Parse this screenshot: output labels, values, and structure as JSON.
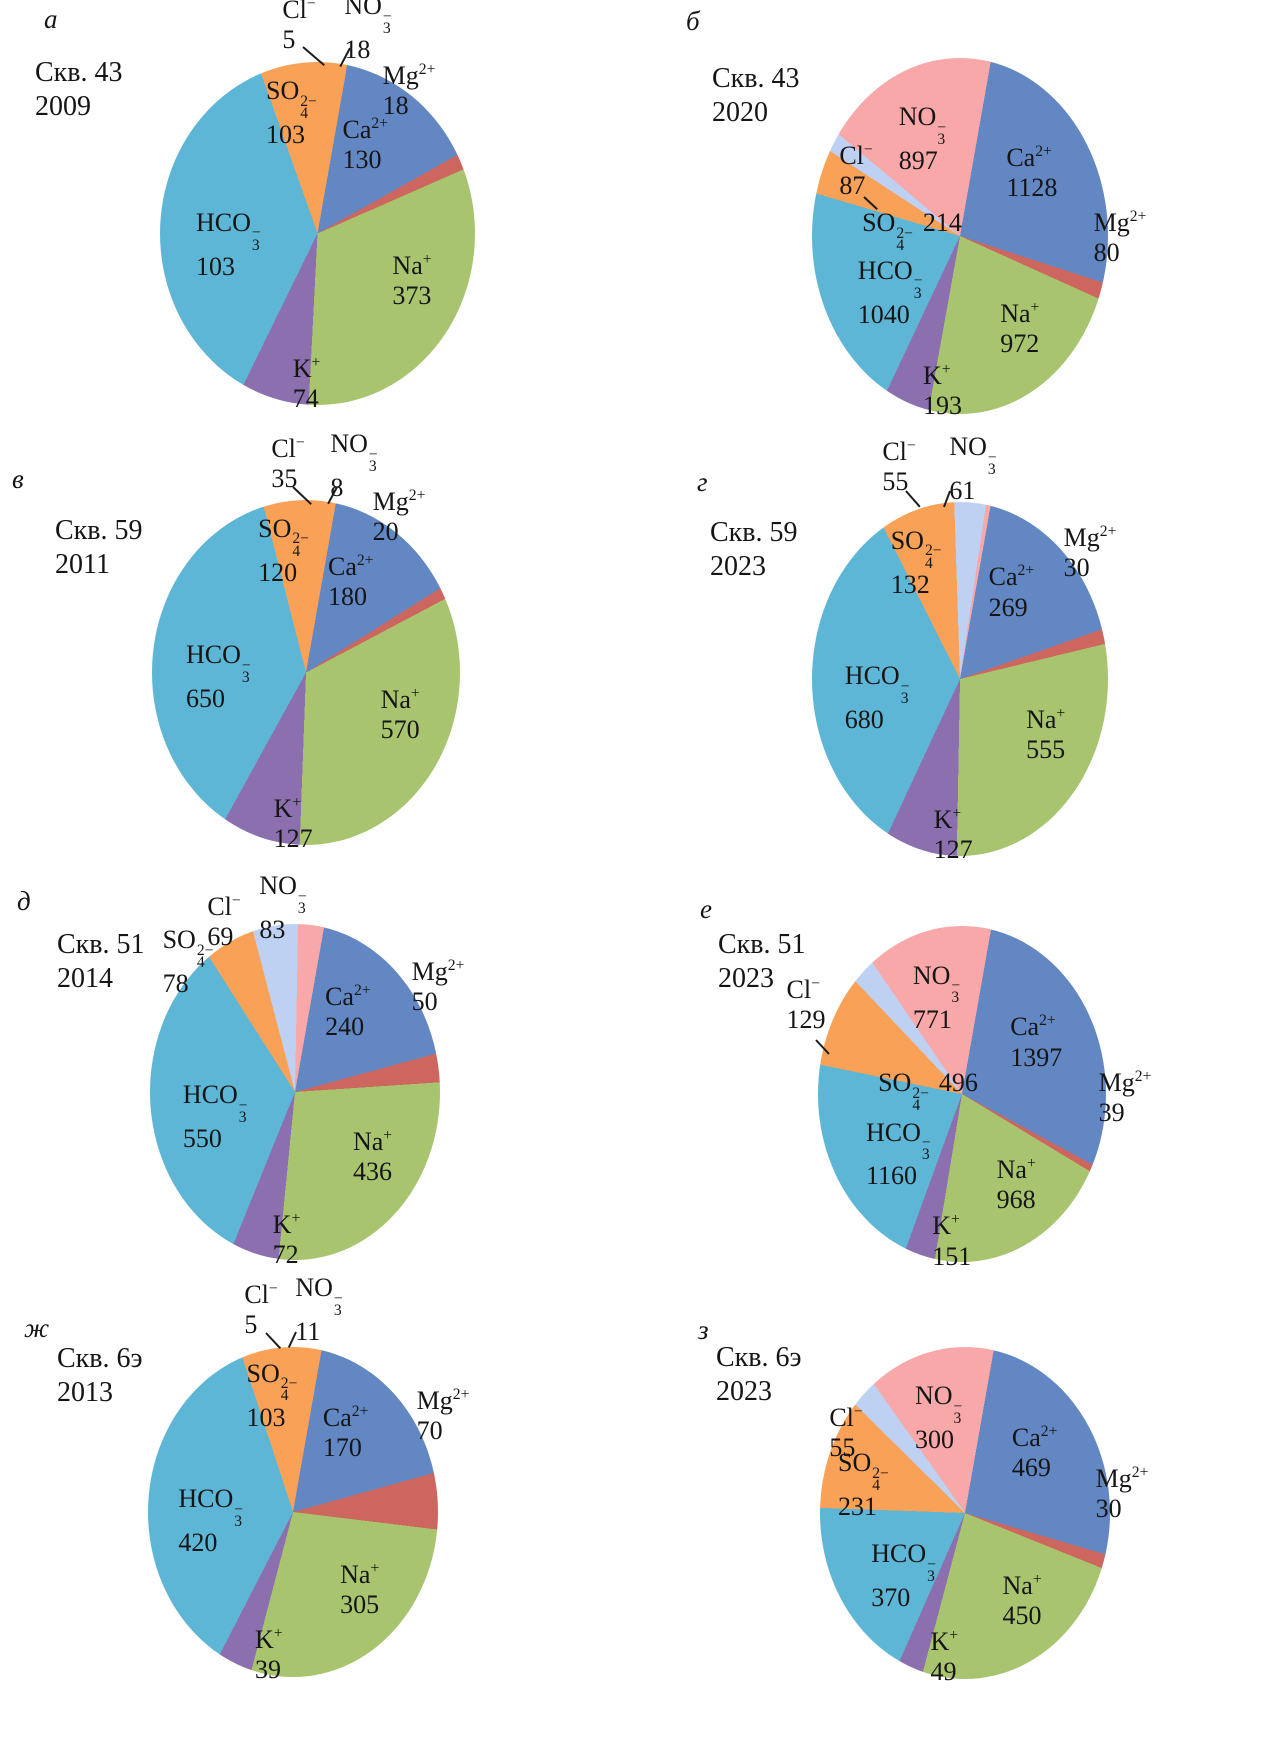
{
  "palette": {
    "Ca": "#6287c3",
    "Mg": "#cc665f",
    "Na": "#a8c46e",
    "K": "#8b6fae",
    "HCO3": "#5eb6d6",
    "SO4": "#f9a257",
    "Cl": "#bed1f2",
    "NO3": "#f8a8a9"
  },
  "ions": [
    {
      "key": "Ca",
      "base": "Ca",
      "sup": "2+"
    },
    {
      "key": "Mg",
      "base": "Mg",
      "sup": "2+"
    },
    {
      "key": "Na",
      "base": "Na",
      "sup": "+"
    },
    {
      "key": "K",
      "base": "K",
      "sup": "+"
    },
    {
      "key": "HCO3",
      "base": "HCO",
      "sub": "3",
      "sup": "−"
    },
    {
      "key": "SO4",
      "base": "SO",
      "sub": "4",
      "sup": "2−"
    },
    {
      "key": "Cl",
      "base": "Cl",
      "sup": "−"
    },
    {
      "key": "NO3",
      "base": "NO",
      "sub": "3",
      "sup": "−"
    }
  ],
  "chart_data": [
    {
      "type": "pie",
      "panel": "а",
      "well": "Скв. 43",
      "year": "2009",
      "categories": [
        "Ca²⁺",
        "Mg²⁺",
        "Na⁺",
        "K⁺",
        "HCO₃⁻",
        "SO₄²⁻",
        "Cl⁻",
        "NO₃⁻"
      ],
      "values": [
        130,
        18,
        373,
        74,
        103,
        103,
        5,
        18
      ]
    },
    {
      "type": "pie",
      "panel": "б",
      "well": "Скв. 43",
      "year": "2020",
      "categories": [
        "Ca²⁺",
        "Mg²⁺",
        "Na⁺",
        "K⁺",
        "HCO₃⁻",
        "SO₄²⁻",
        "Cl⁻",
        "NO₃⁻"
      ],
      "values": [
        1128,
        80,
        972,
        193,
        1040,
        214,
        87,
        897
      ]
    },
    {
      "type": "pie",
      "panel": "в",
      "well": "Скв. 59",
      "year": "2011",
      "categories": [
        "Ca²⁺",
        "Mg²⁺",
        "Na⁺",
        "K⁺",
        "HCO₃⁻",
        "SO₄²⁻",
        "Cl⁻",
        "NO₃⁻"
      ],
      "values": [
        180,
        20,
        570,
        127,
        650,
        120,
        35,
        8
      ]
    },
    {
      "type": "pie",
      "panel": "г",
      "well": "Скв. 59",
      "year": "2023",
      "categories": [
        "Ca²⁺",
        "Mg²⁺",
        "Na⁺",
        "K⁺",
        "HCO₃⁻",
        "SO₄²⁻",
        "Cl⁻",
        "NO₃⁻"
      ],
      "values": [
        269,
        30,
        555,
        127,
        680,
        132,
        55,
        61
      ]
    },
    {
      "type": "pie",
      "panel": "д",
      "well": "Скв. 51",
      "year": "2014",
      "categories": [
        "Ca²⁺",
        "Mg²⁺",
        "Na⁺",
        "K⁺",
        "HCO₃⁻",
        "SO₄²⁻",
        "Cl⁻",
        "NO₃⁻"
      ],
      "values": [
        240,
        50,
        436,
        72,
        550,
        78,
        69,
        83
      ]
    },
    {
      "type": "pie",
      "panel": "е",
      "well": "Скв. 51",
      "year": "2023",
      "categories": [
        "Ca²⁺",
        "Mg²⁺",
        "Na⁺",
        "K⁺",
        "HCO₃⁻",
        "SO₄²⁻",
        "Cl⁻",
        "NO₃⁻"
      ],
      "values": [
        1397,
        39,
        968,
        151,
        1160,
        496,
        129,
        771
      ]
    },
    {
      "type": "pie",
      "panel": "ж",
      "well": "Скв. 6э",
      "year": "2013",
      "categories": [
        "Ca²⁺",
        "Mg²⁺",
        "Na⁺",
        "K⁺",
        "HCO₃⁻",
        "SO₄²⁻",
        "Cl⁻",
        "NO₃⁻"
      ],
      "values": [
        170,
        70,
        305,
        39,
        420,
        103,
        5,
        11
      ]
    },
    {
      "type": "pie",
      "panel": "з",
      "well": "Скв. 6э",
      "year": "2023",
      "categories": [
        "Ca²⁺",
        "Mg²⁺",
        "Na⁺",
        "K⁺",
        "HCO₃⁻",
        "SO₄²⁻",
        "Cl⁻",
        "NO₃⁻"
      ],
      "values": [
        469,
        30,
        450,
        49,
        370,
        231,
        55,
        300
      ]
    }
  ]
}
